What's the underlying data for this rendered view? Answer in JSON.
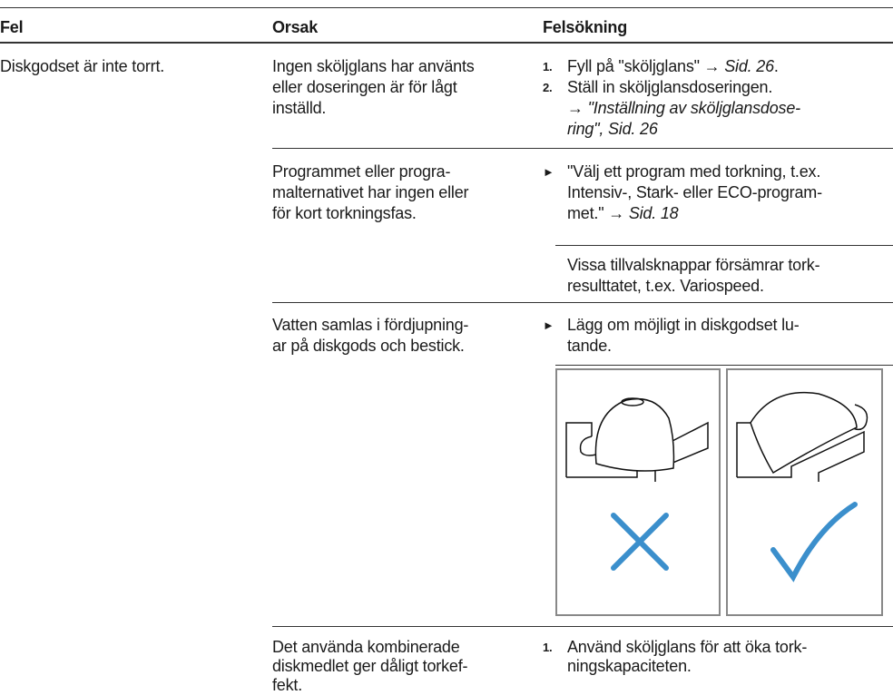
{
  "header": {
    "fel": "Fel",
    "orsak": "Orsak",
    "felsokning": "Felsökning"
  },
  "rows": [
    {
      "fel": "Diskgodset är inte torrt.",
      "causes": [
        {
          "lines": [
            "Ingen sköljglans har använts",
            "eller doseringen är för lågt",
            "inställd."
          ],
          "steps": [
            {
              "marker": "1.",
              "lines": [
                [
                  "Fyll på \"sköljglans\" → ",
                  {
                    "i": "Sid. 26"
                  },
                  "."
                ]
              ]
            },
            {
              "marker": "2.",
              "lines": [
                [
                  "Ställ in sköljglansdoseringen."
                ],
                [
                  "→ ",
                  {
                    "i": "\"Inställning av sköljglansdose-"
                  }
                ],
                [
                  {
                    "i": "ring\", Sid. 26"
                  }
                ]
              ]
            }
          ]
        },
        {
          "lines": [
            "Programmet eller progra-",
            "malternativet har ingen eller",
            "för kort torkningsfas."
          ],
          "steps": [
            {
              "marker": "►",
              "lines": [
                [
                  "\"Välj ett program med torkning, t.ex."
                ],
                [
                  "Intensiv-, Stark- eller ECO-program-"
                ],
                [
                  "met.\" → ",
                  {
                    "i": "Sid. 18"
                  }
                ]
              ]
            }
          ],
          "note": [
            "Vissa tillvalsknappar försämrar tork-",
            "resulttatet, t.ex. Variospeed."
          ]
        },
        {
          "lines": [
            "Vatten samlas i fördjupning-",
            "ar på diskgods och bestick."
          ],
          "steps": [
            {
              "marker": "►",
              "lines": [
                [
                  "Lägg om möjligt in diskgodset lu-"
                ],
                [
                  "tande."
                ]
              ]
            }
          ]
        },
        {
          "lines": [
            "Det använda kombinerade",
            "diskmedlet ger dåligt torkef-",
            "fekt."
          ],
          "steps": [
            {
              "marker": "1.",
              "lines": [
                [
                  "Använd sköljglans för att öka tork-"
                ],
                [
                  "ningskapaciteten."
                ]
              ]
            }
          ]
        }
      ]
    }
  ]
}
